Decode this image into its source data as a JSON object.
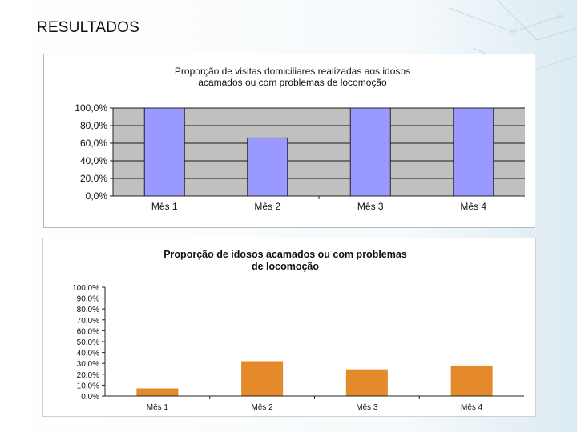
{
  "slide": {
    "title": "RESULTADOS"
  },
  "colors": {
    "chart1_bar": "#9999ff",
    "chart1_plot_bg": "#c0c0c0",
    "chart2_bar": "#e58a2a"
  },
  "chart_data": [
    {
      "type": "bar",
      "title_lines": [
        "Proporção de visitas domiciliares realizadas aos idosos",
        "acamados ou com problemas de locomoção"
      ],
      "categories": [
        "Mês 1",
        "Mês 2",
        "Mês 3",
        "Mês 4"
      ],
      "values": [
        100,
        66,
        100,
        100
      ],
      "ylim": [
        0,
        100
      ],
      "yticks": [
        0,
        20,
        40,
        60,
        80,
        100
      ],
      "ytick_labels": [
        "0,0%",
        "20,0%",
        "40,0%",
        "60,0%",
        "80,0%",
        "100,0%"
      ],
      "grid": true,
      "xlabel": "",
      "ylabel": ""
    },
    {
      "type": "bar",
      "title_lines": [
        "Proporção de idosos acamados ou com problemas",
        "de locomoção"
      ],
      "categories": [
        "Mês 1",
        "Mês 2",
        "Mês 3",
        "Mês 4"
      ],
      "values": [
        7,
        32,
        24.5,
        28
      ],
      "ylim": [
        0,
        100
      ],
      "yticks": [
        0,
        10,
        20,
        30,
        40,
        50,
        60,
        70,
        80,
        90,
        100
      ],
      "ytick_labels": [
        "0,0%",
        "10,0%",
        "20,0%",
        "30,0%",
        "40,0%",
        "50,0%",
        "60,0%",
        "70,0%",
        "80,0%",
        "90,0%",
        "100,0%"
      ],
      "grid": false,
      "xlabel": "",
      "ylabel": ""
    }
  ]
}
